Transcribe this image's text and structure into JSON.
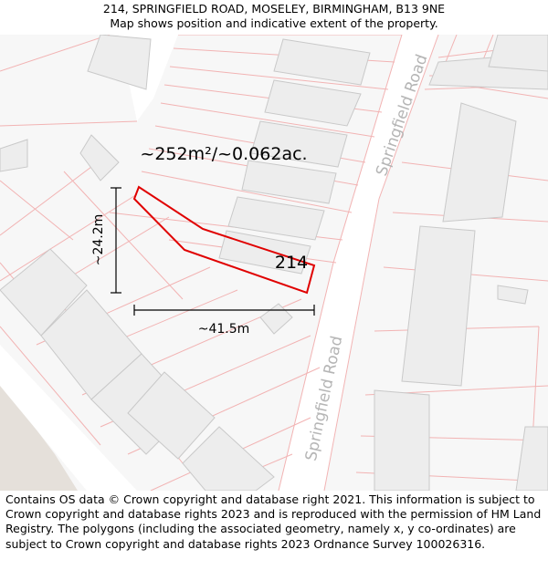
{
  "header": {
    "address": "214, SPRINGFIELD ROAD, MOSELEY, BIRMINGHAM, B13 9NE",
    "subtitle": "Map shows position and indicative extent of the property."
  },
  "map": {
    "area_label": "~252m²/~0.062ac.",
    "height_label": "~24.2m",
    "width_label": "~41.5m",
    "house_number": "214",
    "road_label_upper": "Springfield Road",
    "road_label_lower": "Springfield Road",
    "colors": {
      "background": "#f7f7f7",
      "road": "#ffffff",
      "building_fill": "#ededed",
      "building_stroke": "#c9c9c9",
      "parcel_line": "#f2b3b3",
      "property_outline": "#e00000",
      "dimension_line": "#000000",
      "green_area": "#e5e0da"
    }
  },
  "footer": {
    "copyright": "Contains OS data © Crown copyright and database right 2021. This information is subject to Crown copyright and database rights 2023 and is reproduced with the permission of HM Land Registry. The polygons (including the associated geometry, namely x, y co-ordinates) are subject to Crown copyright and database rights 2023 Ordnance Survey 100026316."
  }
}
